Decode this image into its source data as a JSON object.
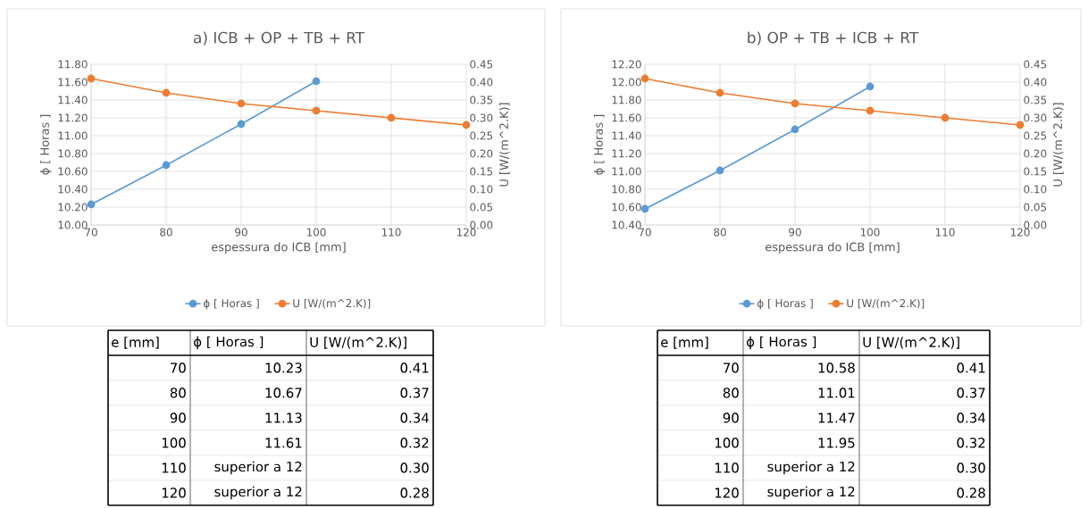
{
  "chart_data": [
    {
      "type": "line",
      "title": "a) ICB + OP + TB + RT",
      "xlabel": "espessura do ICB [mm]",
      "ylabel": "ϕ [ Horas ]",
      "y2label": "U  [W/(m^2.K)]",
      "annotations": [
        "e [mm]",
        "70",
        "10.23",
        "0.41",
        "80",
        "10.67",
        "0.37",
        "90",
        "11.13",
        "0.34",
        "100",
        "11.61",
        "0.32",
        "110",
        "superior a 12",
        "0.30",
        "120",
        "superior a 12",
        "0.28"
      ],
      "x": [
        70,
        80,
        90,
        100,
        110,
        120
      ],
      "xlim": [
        70,
        120
      ],
      "xticks": [
        70,
        80,
        90,
        100,
        110,
        120
      ],
      "ylim": [
        10.0,
        11.8
      ],
      "yticks": [
        {
          "value": 10.0,
          "label": "10.00"
        },
        {
          "value": 10.2,
          "label": "10.20"
        },
        {
          "value": 10.4,
          "label": "10.40"
        },
        {
          "value": 10.6,
          "label": "10.60"
        },
        {
          "value": 10.8,
          "label": "10.80"
        },
        {
          "value": 11.0,
          "label": "11.00"
        },
        {
          "value": 11.2,
          "label": "11.20"
        },
        {
          "value": 11.4,
          "label": "11.40"
        },
        {
          "value": 11.6,
          "label": "11.60"
        },
        {
          "value": 11.8,
          "label": "11.80"
        }
      ],
      "y2lim": [
        0,
        0.45
      ],
      "y2ticks": [
        {
          "value": 0,
          "label": "0.00"
        },
        {
          "value": 0.05,
          "label": "0.05"
        },
        {
          "value": 0.1,
          "label": "0.10"
        },
        {
          "value": 0.15,
          "label": "0.15"
        },
        {
          "value": 0.2,
          "label": "0.20"
        },
        {
          "value": 0.25,
          "label": "0.25"
        },
        {
          "value": 0.3,
          "label": "0.30"
        },
        {
          "value": 0.35,
          "label": "0.35"
        },
        {
          "value": 0.4,
          "label": "0.40"
        },
        {
          "value": 0.45,
          "label": "0.45"
        }
      ],
      "grid": true,
      "legend": "bottom",
      "marker": "circle",
      "line_style": "solid",
      "series": [
        {
          "name": "ϕ [ Horas ]",
          "color": "#5b9bd5",
          "values": [
            10.23,
            10.67,
            11.13,
            11.61,
            null,
            null
          ]
        },
        {
          "name": "U  [W/(m^2.K)]",
          "color": "#ed7d31",
          "axis": "y2",
          "values": [
            0.41,
            0.37,
            0.34,
            0.32,
            0.3,
            0.28
          ]
        }
      ]
    },
    {
      "type": "line",
      "title": "b) OP + TB + ICB + RT",
      "xlabel": "espessura do ICB [mm]",
      "ylabel": "ϕ [ Horas ]",
      "y2label": "U  [W/(m^2.K)]",
      "annotations": [
        "e [mm]",
        "70",
        "10.58",
        "0.41",
        "80",
        "11.01",
        "0.37",
        "90",
        "11.47",
        "0.34",
        "100",
        "11.95",
        "0.32",
        "110",
        "superior a 12",
        "0.30",
        "120",
        "superior a 12",
        "0.28"
      ],
      "x": [
        70,
        80,
        90,
        100,
        110,
        120
      ],
      "xlim": [
        70,
        120
      ],
      "xticks": [
        70,
        80,
        90,
        100,
        110,
        120
      ],
      "ylim": [
        10.4,
        12.2
      ],
      "yticks": [
        {
          "value": 10.4,
          "label": "10.40"
        },
        {
          "value": 10.6,
          "label": "10.60"
        },
        {
          "value": 10.8,
          "label": "10.80"
        },
        {
          "value": 11.0,
          "label": "11.00"
        },
        {
          "value": 11.2,
          "label": "11.20"
        },
        {
          "value": 11.4,
          "label": "11.40"
        },
        {
          "value": 11.6,
          "label": "11.60"
        },
        {
          "value": 11.8,
          "label": "11.80"
        },
        {
          "value": 12.0,
          "label": "12.00"
        },
        {
          "value": 12.2,
          "label": "12.20"
        }
      ],
      "y2lim": [
        0,
        0.45
      ],
      "y2ticks": [
        {
          "value": 0,
          "label": "0.00"
        },
        {
          "value": 0.05,
          "label": "0.05"
        },
        {
          "value": 0.1,
          "label": "0.10"
        },
        {
          "value": 0.15,
          "label": "0.15"
        },
        {
          "value": 0.2,
          "label": "0.20"
        },
        {
          "value": 0.25,
          "label": "0.25"
        },
        {
          "value": 0.3,
          "label": "0.30"
        },
        {
          "value": 0.35,
          "label": "0.35"
        },
        {
          "value": 0.4,
          "label": "0.40"
        },
        {
          "value": 0.45,
          "label": "0.45"
        }
      ],
      "grid": true,
      "legend": "bottom",
      "marker": "circle",
      "line_style": "solid",
      "series": [
        {
          "name": "ϕ [ Horas ]",
          "color": "#5b9bd5",
          "values": [
            10.58,
            11.01,
            11.47,
            11.95,
            null,
            null
          ]
        },
        {
          "name": "U  [W/(m^2.K)]",
          "color": "#ed7d31",
          "axis": "y2",
          "values": [
            0.41,
            0.37,
            0.34,
            0.32,
            0.3,
            0.28
          ]
        }
      ]
    }
  ]
}
